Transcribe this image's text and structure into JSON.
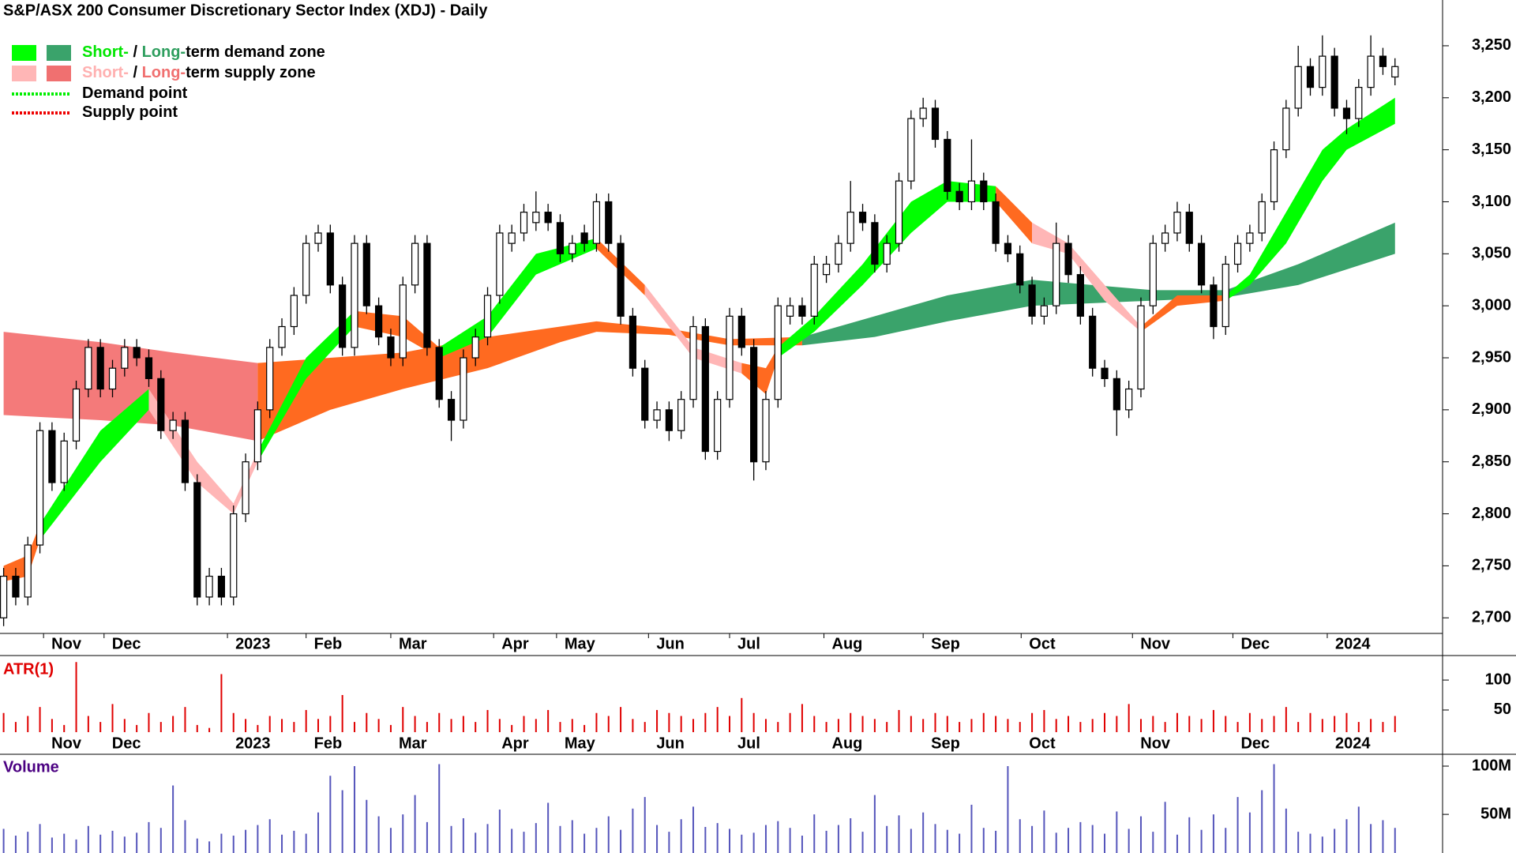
{
  "chart_data": {
    "type": "candlestick",
    "title": "S&P/ASX 200 Consumer Discretionary Sector Index (XDJ) - Daily",
    "legend": [
      {
        "swatches": [
          "#00ff00",
          "#3aa36b"
        ],
        "parts": [
          {
            "text": "Short-",
            "color": "#00e600"
          },
          {
            "text": " / "
          },
          {
            "text": "Long-",
            "color": "#2e9e5e"
          },
          {
            "text": "term demand zone"
          }
        ]
      },
      {
        "swatches": [
          "#ffb6b6",
          "#f07070"
        ],
        "parts": [
          {
            "text": "Short-",
            "color": "#ffb0b0"
          },
          {
            "text": " / "
          },
          {
            "text": "Long-",
            "color": "#f07070"
          },
          {
            "text": "term supply zone"
          }
        ]
      },
      {
        "line": "#00ee00",
        "parts": [
          {
            "text": "Demand point"
          }
        ]
      },
      {
        "line": "#ee0000",
        "parts": [
          {
            "text": "Supply point"
          }
        ]
      }
    ],
    "xlim": [
      -0.3,
      118.8
    ],
    "xticks": [
      {
        "value": 3.3,
        "label": "Nov"
      },
      {
        "value": 8.3,
        "label": "Dec"
      },
      {
        "value": 18.5,
        "label": "2023"
      },
      {
        "value": 25,
        "label": "Feb"
      },
      {
        "value": 32,
        "label": "Mar"
      },
      {
        "value": 40.5,
        "label": "Apr"
      },
      {
        "value": 45.7,
        "label": "May"
      },
      {
        "value": 53.3,
        "label": "Jun"
      },
      {
        "value": 60,
        "label": "Jul"
      },
      {
        "value": 67.8,
        "label": "Aug"
      },
      {
        "value": 76,
        "label": "Sep"
      },
      {
        "value": 84.1,
        "label": "Oct"
      },
      {
        "value": 93.3,
        "label": "Nov"
      },
      {
        "value": 101.6,
        "label": "Dec"
      },
      {
        "value": 109.4,
        "label": "2024"
      }
    ],
    "ylim": [
      2685,
      3294
    ],
    "yticks": [
      {
        "value": 2700,
        "label": "2,700"
      },
      {
        "value": 2750,
        "label": "2,750"
      },
      {
        "value": 2800,
        "label": "2,800"
      },
      {
        "value": 2850,
        "label": "2,850"
      },
      {
        "value": 2900,
        "label": "2,900"
      },
      {
        "value": 2950,
        "label": "2,950"
      },
      {
        "value": 3000,
        "label": "3,000"
      },
      {
        "value": 3050,
        "label": "3,050"
      },
      {
        "value": 3100,
        "label": "3,100"
      },
      {
        "value": 3150,
        "label": "3,150"
      },
      {
        "value": 3200,
        "label": "3,200"
      },
      {
        "value": 3250,
        "label": "3,250"
      }
    ],
    "open": [
      2700,
      2740,
      2720,
      2770,
      2880,
      2830,
      2870,
      2920,
      2960,
      2920,
      2940,
      2960,
      2950,
      2930,
      2880,
      2890,
      2830,
      2720,
      2740,
      2720,
      2800,
      2850,
      2900,
      2960,
      2980,
      3010,
      3060,
      3070,
      3020,
      2960,
      3060,
      3000,
      2970,
      2950,
      3020,
      3060,
      2960,
      2910,
      2890,
      2950,
      2970,
      3010,
      3060,
      3070,
      3080,
      3090,
      3080,
      3050,
      3070,
      3060,
      3100,
      3060,
      2990,
      2940,
      2890,
      2900,
      2880,
      2910,
      2980,
      2860,
      2910,
      2990,
      2960,
      2850,
      2910,
      2990,
      3000,
      2990,
      3030,
      3040,
      3060,
      3090,
      3080,
      3040,
      3060,
      3120,
      3180,
      3190,
      3160,
      3110,
      3100,
      3120,
      3100,
      3060,
      3050,
      3020,
      2990,
      3000,
      3060,
      3030,
      2990,
      2940,
      2930,
      2900,
      2920,
      3000,
      3060,
      3070,
      3090,
      3060,
      3020,
      2980,
      3040,
      3060,
      3070,
      3100,
      3150,
      3190,
      3230,
      3210,
      3240,
      3190,
      3180,
      3210,
      3240,
      3220
    ],
    "high": [
      2748,
      2748,
      2778,
      2888,
      2888,
      2878,
      2928,
      2968,
      2968,
      2948,
      2968,
      2968,
      2958,
      2938,
      2898,
      2898,
      2838,
      2748,
      2748,
      2808,
      2858,
      2908,
      2968,
      2988,
      3018,
      3068,
      3078,
      3078,
      3028,
      3068,
      3068,
      3008,
      2978,
      3028,
      3068,
      3068,
      2968,
      2918,
      2958,
      2978,
      3018,
      3078,
      3078,
      3098,
      3110,
      3098,
      3088,
      3068,
      3078,
      3108,
      3108,
      3068,
      2998,
      2948,
      2908,
      2908,
      2918,
      2990,
      2988,
      2918,
      2998,
      2998,
      2968,
      2918,
      3008,
      3008,
      3008,
      3048,
      3048,
      3068,
      3120,
      3098,
      3088,
      3068,
      3128,
      3188,
      3200,
      3198,
      3168,
      3118,
      3160,
      3128,
      3108,
      3068,
      3058,
      3028,
      3008,
      3080,
      3068,
      3038,
      2998,
      2948,
      2938,
      2928,
      3008,
      3068,
      3078,
      3100,
      3098,
      3068,
      3028,
      3048,
      3068,
      3078,
      3108,
      3158,
      3198,
      3250,
      3238,
      3260,
      3248,
      3198,
      3218,
      3260,
      3248,
      3238
    ],
    "low": [
      2692,
      2712,
      2712,
      2762,
      2822,
      2822,
      2862,
      2912,
      2912,
      2912,
      2932,
      2942,
      2922,
      2872,
      2872,
      2822,
      2712,
      2712,
      2712,
      2712,
      2792,
      2842,
      2892,
      2952,
      2972,
      3002,
      3052,
      3012,
      2952,
      2952,
      2992,
      2962,
      2942,
      2942,
      3012,
      2952,
      2902,
      2870,
      2882,
      2942,
      2962,
      3002,
      3052,
      3062,
      3072,
      3072,
      3042,
      3042,
      3052,
      3052,
      3052,
      2982,
      2932,
      2882,
      2882,
      2870,
      2872,
      2902,
      2852,
      2852,
      2902,
      2952,
      2832,
      2842,
      2902,
      2982,
      2982,
      2982,
      3022,
      3032,
      3052,
      3072,
      3032,
      3032,
      3052,
      3112,
      3172,
      3152,
      3102,
      3092,
      3092,
      3092,
      3052,
      3042,
      3012,
      2982,
      2982,
      2992,
      3022,
      2982,
      2932,
      2922,
      2875,
      2892,
      2912,
      2992,
      3052,
      3062,
      3052,
      3012,
      2968,
      2972,
      3032,
      3052,
      3062,
      3092,
      3142,
      3182,
      3202,
      3202,
      3182,
      3165,
      3172,
      3202,
      3222,
      3212
    ],
    "close": [
      2740,
      2720,
      2770,
      2880,
      2830,
      2870,
      2920,
      2960,
      2920,
      2940,
      2960,
      2950,
      2930,
      2880,
      2890,
      2830,
      2720,
      2740,
      2720,
      2800,
      2850,
      2900,
      2960,
      2980,
      3010,
      3060,
      3070,
      3020,
      2960,
      3060,
      3000,
      2970,
      2950,
      3020,
      3060,
      2960,
      2910,
      2890,
      2950,
      2970,
      3010,
      3070,
      3070,
      3090,
      3090,
      3080,
      3050,
      3060,
      3060,
      3100,
      3060,
      2990,
      2940,
      2890,
      2900,
      2880,
      2910,
      2980,
      2860,
      2910,
      2990,
      2960,
      2850,
      2910,
      3000,
      3000,
      2990,
      3040,
      3040,
      3060,
      3090,
      3080,
      3040,
      3060,
      3120,
      3180,
      3190,
      3160,
      3110,
      3100,
      3120,
      3100,
      3060,
      3050,
      3020,
      2990,
      3000,
      3060,
      3030,
      2990,
      2940,
      2930,
      2900,
      2920,
      3000,
      3060,
      3070,
      3090,
      3060,
      3020,
      2980,
      3040,
      3060,
      3070,
      3100,
      3150,
      3190,
      3230,
      3210,
      3240,
      3190,
      3180,
      3210,
      3240,
      3230,
      3230
    ],
    "zones": [
      {
        "color": "#f47a7a",
        "x": [
          0,
          8,
          14,
          21
        ],
        "upper": [
          2975,
          2965,
          2955,
          2945
        ],
        "lower": [
          2895,
          2890,
          2885,
          2870
        ]
      },
      {
        "color": "#ff6a20",
        "x": [
          21,
          27,
          33,
          40,
          46,
          49,
          55,
          60,
          66
        ],
        "upper": [
          2945,
          2950,
          2955,
          2970,
          2980,
          2985,
          2978,
          2968,
          2970
        ],
        "lower": [
          2870,
          2900,
          2920,
          2940,
          2965,
          2975,
          2972,
          2962,
          2962
        ]
      },
      {
        "color": "#3aa36b",
        "x": [
          66,
          72,
          78,
          85,
          95,
          101,
          107,
          115
        ],
        "upper": [
          2970,
          2990,
          3010,
          3025,
          3015,
          3015,
          3040,
          3080
        ],
        "lower": [
          2962,
          2970,
          2985,
          3000,
          3005,
          3008,
          3020,
          3050
        ]
      },
      {
        "color": "#ff6a20",
        "x": [
          0,
          2,
          3
        ],
        "upper": [
          2750,
          2760,
          2790
        ],
        "lower": [
          2735,
          2740,
          2775
        ]
      },
      {
        "color": "#00ff00",
        "x": [
          3,
          8,
          12
        ],
        "upper": [
          2790,
          2880,
          2920
        ],
        "lower": [
          2775,
          2850,
          2900
        ]
      },
      {
        "color": "#ffb6b6",
        "x": [
          12,
          16,
          19,
          21
        ],
        "upper": [
          2920,
          2850,
          2810,
          2860
        ],
        "lower": [
          2900,
          2830,
          2800,
          2850
        ]
      },
      {
        "color": "#00ff00",
        "x": [
          21,
          25,
          29
        ],
        "upper": [
          2860,
          2950,
          2995
        ],
        "lower": [
          2850,
          2930,
          2980
        ]
      },
      {
        "color": "#ff6a20",
        "x": [
          29,
          33,
          36
        ],
        "upper": [
          2995,
          2990,
          2960
        ],
        "lower": [
          2980,
          2970,
          2950
        ]
      },
      {
        "color": "#00ff00",
        "x": [
          36,
          40,
          44,
          49
        ],
        "upper": [
          2960,
          2990,
          3050,
          3065
        ],
        "lower": [
          2950,
          2970,
          3030,
          3055
        ]
      },
      {
        "color": "#ff6a20",
        "x": [
          49,
          53
        ],
        "upper": [
          3065,
          3020
        ],
        "lower": [
          3055,
          3010
        ]
      },
      {
        "color": "#ffb6b6",
        "x": [
          53,
          57,
          61
        ],
        "upper": [
          3020,
          2960,
          2945
        ],
        "lower": [
          3010,
          2950,
          2935
        ]
      },
      {
        "color": "#ff6a20",
        "x": [
          61,
          63,
          64
        ],
        "upper": [
          2945,
          2940,
          2960
        ],
        "lower": [
          2935,
          2915,
          2950
        ]
      },
      {
        "color": "#00ff00",
        "x": [
          64,
          67,
          71,
          75,
          78,
          82
        ],
        "upper": [
          2960,
          2990,
          3040,
          3100,
          3120,
          3115
        ],
        "lower": [
          2950,
          2975,
          3020,
          3070,
          3100,
          3100
        ]
      },
      {
        "color": "#ff6a20",
        "x": [
          82,
          85
        ],
        "upper": [
          3115,
          3080
        ],
        "lower": [
          3100,
          3060
        ]
      },
      {
        "color": "#ffb6b6",
        "x": [
          85,
          88,
          91,
          94
        ],
        "upper": [
          3080,
          3060,
          3020,
          2980
        ],
        "lower": [
          3060,
          3050,
          3005,
          2975
        ]
      },
      {
        "color": "#ff6a20",
        "x": [
          94,
          97,
          101
        ],
        "upper": [
          2980,
          3010,
          3010
        ],
        "lower": [
          2975,
          3000,
          3005
        ]
      },
      {
        "color": "#00ff00",
        "x": [
          101,
          103,
          106,
          109,
          111,
          115
        ],
        "upper": [
          3010,
          3030,
          3090,
          3150,
          3170,
          3200
        ],
        "lower": [
          3005,
          3020,
          3060,
          3120,
          3150,
          3175
        ]
      }
    ],
    "atr": {
      "label": "ATR(1)",
      "color": "#e00000",
      "ylim": [
        13,
        137
      ],
      "yticks": [
        50,
        100
      ],
      "values": [
        45,
        30,
        40,
        55,
        35,
        25,
        130,
        40,
        30,
        60,
        35,
        25,
        45,
        30,
        40,
        55,
        25,
        20,
        110,
        45,
        35,
        25,
        40,
        35,
        30,
        50,
        35,
        40,
        75,
        30,
        45,
        35,
        25,
        55,
        40,
        30,
        45,
        35,
        40,
        30,
        50,
        35,
        25,
        40,
        35,
        50,
        30,
        35,
        25,
        45,
        40,
        55,
        35,
        30,
        50,
        45,
        40,
        35,
        45,
        55,
        40,
        70,
        45,
        35,
        30,
        45,
        60,
        40,
        30,
        35,
        45,
        40,
        35,
        30,
        50,
        40,
        35,
        45,
        40,
        30,
        35,
        45,
        40,
        35,
        30,
        45,
        50,
        35,
        40,
        30,
        35,
        45,
        40,
        60,
        35,
        40,
        30,
        45,
        40,
        35,
        50,
        40,
        30,
        45,
        35,
        40,
        55,
        30,
        45,
        35,
        40,
        45,
        30,
        35,
        30,
        40
      ]
    },
    "volume": {
      "label": "Volume",
      "label_color": "#4b0082",
      "color": "#5555bb",
      "ylim": [
        10000000.0,
        109000000.0
      ],
      "yticks": [
        {
          "value": 50000000.0,
          "label": "50M"
        },
        {
          "value": 100000000.0,
          "label": "100M"
        }
      ],
      "values": [
        35000000.0,
        28000000.0,
        32000000.0,
        40000000.0,
        26000000.0,
        30000000.0,
        24000000.0,
        38000000.0,
        29000000.0,
        33000000.0,
        27000000.0,
        31000000.0,
        42000000.0,
        36000000.0,
        80000000.0,
        44000000.0,
        25000000.0,
        22000000.0,
        30000000.0,
        28000000.0,
        34000000.0,
        39000000.0,
        45000000.0,
        29000000.0,
        33000000.0,
        30000000.0,
        52000000.0,
        90000000.0,
        75000000.0,
        100000000.0,
        65000000.0,
        48000000.0,
        36000000.0,
        50000000.0,
        70000000.0,
        42000000.0,
        102000000.0,
        38000000.0,
        46000000.0,
        31000000.0,
        40000000.0,
        55000000.0,
        35000000.0,
        32000000.0,
        41000000.0,
        62000000.0,
        38000000.0,
        44000000.0,
        30000000.0,
        36000000.0,
        48000000.0,
        34000000.0,
        56000000.0,
        68000000.0,
        39000000.0,
        32000000.0,
        45000000.0,
        58000000.0,
        37000000.0,
        41000000.0,
        35000000.0,
        29000000.0,
        31000000.0,
        39000000.0,
        43000000.0,
        36000000.0,
        28000000.0,
        50000000.0,
        33000000.0,
        39000000.0,
        46000000.0,
        32000000.0,
        70000000.0,
        38000000.0,
        49000000.0,
        35000000.0,
        52000000.0,
        40000000.0,
        34000000.0,
        30000000.0,
        60000000.0,
        36000000.0,
        33000000.0,
        100000000.0,
        45000000.0,
        38000000.0,
        54000000.0,
        31000000.0,
        36000000.0,
        42000000.0,
        39000000.0,
        30000000.0,
        53000000.0,
        35000000.0,
        48000000.0,
        32000000.0,
        63000000.0,
        29000000.0,
        47000000.0,
        34000000.0,
        50000000.0,
        36000000.0,
        68000000.0,
        52000000.0,
        75000000.0,
        102000000.0,
        56000000.0,
        32000000.0,
        30000000.0,
        27000000.0,
        35000000.0,
        45000000.0,
        58000000.0,
        40000000.0,
        44000000.0,
        36000000.0
      ]
    }
  }
}
